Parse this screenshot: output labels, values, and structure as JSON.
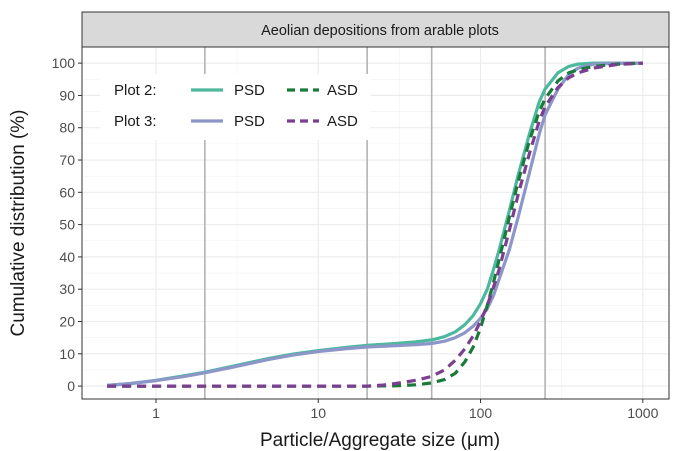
{
  "chart_data": {
    "type": "line",
    "title": "Aeolian depositions from arable plots",
    "xlabel": "Particle/Aggregate size (μm)",
    "ylabel": "Cumulative distribution (%)",
    "xscale": "log",
    "xlim": [
      0.35,
      1450
    ],
    "ylim": [
      -4,
      105
    ],
    "x_ticks": [
      1,
      10,
      100,
      1000
    ],
    "x_tick_labels": [
      "1",
      "10",
      "100",
      "1000"
    ],
    "y_ticks": [
      0,
      10,
      20,
      30,
      40,
      50,
      60,
      70,
      80,
      90,
      100
    ],
    "y_tick_labels": [
      "0",
      "10",
      "20",
      "30",
      "40",
      "50",
      "60",
      "70",
      "80",
      "90",
      "100"
    ],
    "reference_lines_x": [
      2,
      20,
      50,
      250
    ],
    "grid": true,
    "legend_position": "top-left",
    "legend": {
      "rows": [
        {
          "label": "Plot 2:",
          "entries": [
            {
              "name": "PSD",
              "series": 0
            },
            {
              "name": "ASD",
              "series": 1
            }
          ]
        },
        {
          "label": "Plot 3:",
          "entries": [
            {
              "name": "PSD",
              "series": 2
            },
            {
              "name": "ASD",
              "series": 3
            }
          ]
        }
      ]
    },
    "series": [
      {
        "name": "PSD",
        "group": "Plot 2:",
        "color": "#4db89e",
        "dash": "solid",
        "x": [
          0.5,
          0.7,
          1,
          1.5,
          2,
          3,
          5,
          7,
          10,
          15,
          20,
          30,
          40,
          50,
          60,
          70,
          80,
          90,
          100,
          110,
          120,
          130,
          150,
          170,
          200,
          230,
          250,
          300,
          350,
          400,
          500,
          700,
          1000
        ],
        "y": [
          0.2,
          0.8,
          1.8,
          3.2,
          4.3,
          6.2,
          8.6,
          9.9,
          11.0,
          12.0,
          12.6,
          13.2,
          13.7,
          14.3,
          15.3,
          16.8,
          19.0,
          21.8,
          25.5,
          30.0,
          36.0,
          42.0,
          54.0,
          65.0,
          78.0,
          88.0,
          92.0,
          97.0,
          99.0,
          99.7,
          100,
          100,
          100
        ]
      },
      {
        "name": "ASD",
        "group": "Plot 2:",
        "color": "#1a7a3a",
        "dash": "dashed",
        "x": [
          0.5,
          1,
          2,
          5,
          10,
          20,
          30,
          40,
          50,
          60,
          70,
          80,
          90,
          100,
          110,
          120,
          130,
          150,
          170,
          200,
          230,
          250,
          300,
          350,
          400,
          500,
          700,
          1000
        ],
        "y": [
          0,
          0,
          0,
          0,
          0,
          0,
          0.1,
          0.4,
          1.0,
          2.0,
          4.0,
          7.5,
          12.0,
          18.0,
          25.0,
          32.0,
          39.0,
          52.0,
          63.0,
          76.0,
          85.0,
          89.0,
          94.5,
          97.0,
          98.0,
          99.0,
          99.7,
          100
        ]
      },
      {
        "name": "PSD",
        "group": "Plot 3:",
        "color": "#8c96c9",
        "dash": "solid",
        "x": [
          0.5,
          0.7,
          1,
          1.5,
          2,
          3,
          5,
          7,
          10,
          15,
          20,
          30,
          40,
          50,
          60,
          70,
          80,
          90,
          100,
          110,
          120,
          130,
          150,
          170,
          200,
          230,
          250,
          300,
          350,
          400,
          500,
          700,
          1000
        ],
        "y": [
          0.2,
          0.8,
          1.7,
          3.0,
          4.1,
          5.9,
          8.3,
          9.6,
          10.7,
          11.6,
          12.1,
          12.5,
          12.8,
          13.2,
          13.9,
          15.0,
          16.5,
          18.5,
          21.0,
          24.0,
          28.0,
          33.0,
          42.0,
          52.0,
          66.0,
          78.0,
          84.0,
          92.0,
          96.5,
          98.5,
          99.7,
          100,
          100
        ]
      },
      {
        "name": "ASD",
        "group": "Plot 3:",
        "color": "#7b3f8f",
        "dash": "dashed",
        "x": [
          0.5,
          1,
          2,
          5,
          10,
          20,
          25,
          30,
          40,
          50,
          60,
          70,
          80,
          90,
          100,
          110,
          120,
          130,
          150,
          170,
          200,
          230,
          250,
          300,
          350,
          400,
          500,
          700,
          1000
        ],
        "y": [
          0,
          0,
          0,
          0,
          0,
          0,
          0.3,
          0.8,
          1.8,
          3.0,
          5.0,
          8.0,
          11.5,
          15.5,
          20.0,
          25.0,
          30.5,
          36.0,
          48.0,
          59.0,
          72.0,
          82.0,
          86.5,
          92.5,
          95.5,
          97.0,
          98.5,
          99.6,
          100
        ]
      }
    ]
  }
}
